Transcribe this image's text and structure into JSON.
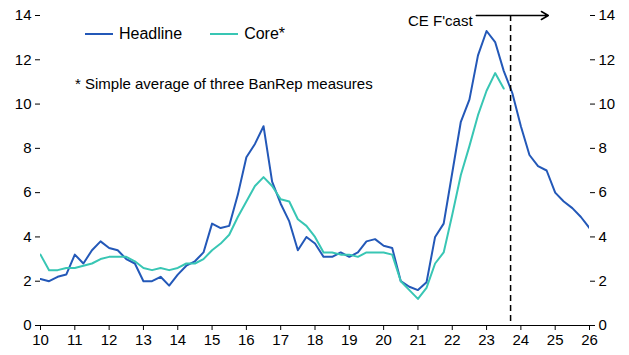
{
  "chart_data": {
    "type": "line",
    "x": [
      2010,
      2010.25,
      2010.5,
      2010.75,
      2011,
      2011.25,
      2011.5,
      2011.75,
      2012,
      2012.25,
      2012.5,
      2012.75,
      2013,
      2013.25,
      2013.5,
      2013.75,
      2014,
      2014.25,
      2014.5,
      2014.75,
      2015,
      2015.25,
      2015.5,
      2015.75,
      2016,
      2016.25,
      2016.5,
      2016.75,
      2017,
      2017.25,
      2017.5,
      2017.75,
      2018,
      2018.25,
      2018.5,
      2018.75,
      2019,
      2019.25,
      2019.5,
      2019.75,
      2020,
      2020.25,
      2020.5,
      2020.75,
      2021,
      2021.25,
      2021.5,
      2021.75,
      2022,
      2022.25,
      2022.5,
      2022.75,
      2023,
      2023.25,
      2023.5,
      2023.75,
      2024,
      2024.25,
      2024.5,
      2024.75,
      2025,
      2025.25,
      2025.5,
      2025.75,
      2026
    ],
    "series": [
      {
        "name": "Headline",
        "color": "#2358b8",
        "values": [
          2.1,
          2.0,
          2.2,
          2.3,
          3.2,
          2.8,
          3.4,
          3.8,
          3.5,
          3.4,
          3.0,
          2.8,
          2.0,
          2.0,
          2.2,
          1.8,
          2.3,
          2.7,
          2.9,
          3.3,
          4.6,
          4.4,
          4.5,
          5.9,
          7.6,
          8.2,
          9.0,
          6.5,
          5.5,
          4.7,
          3.4,
          4.0,
          3.7,
          3.1,
          3.1,
          3.3,
          3.1,
          3.3,
          3.8,
          3.9,
          3.6,
          3.5,
          2.0,
          1.75,
          1.6,
          1.95,
          4.0,
          4.6,
          6.9,
          9.2,
          10.2,
          12.2,
          13.3,
          12.8,
          11.5,
          10.5,
          9.0,
          7.7,
          7.2,
          7.0,
          6.0,
          5.6,
          5.3,
          4.9,
          4.4
        ]
      },
      {
        "name": "Core*",
        "color": "#38c6b4",
        "values": [
          3.2,
          2.5,
          2.5,
          2.6,
          2.6,
          2.7,
          2.8,
          3.0,
          3.1,
          3.1,
          3.1,
          2.9,
          2.6,
          2.5,
          2.6,
          2.5,
          2.6,
          2.8,
          2.8,
          3.0,
          3.4,
          3.7,
          4.1,
          4.9,
          5.6,
          6.3,
          6.7,
          6.3,
          5.7,
          5.6,
          4.8,
          4.5,
          4.0,
          3.3,
          3.3,
          3.2,
          3.2,
          3.1,
          3.3,
          3.3,
          3.3,
          3.2,
          2.0,
          1.6,
          1.2,
          1.7,
          2.8,
          3.3,
          5.0,
          6.8,
          8.1,
          9.5,
          10.6,
          11.4,
          10.7,
          null,
          null,
          null,
          null,
          null,
          null,
          null,
          null,
          null,
          null
        ]
      }
    ],
    "xlim": [
      2010,
      2026
    ],
    "xticks": [
      {
        "value": 2010,
        "label": "10"
      },
      {
        "value": 2011,
        "label": "11"
      },
      {
        "value": 2012,
        "label": "12"
      },
      {
        "value": 2013,
        "label": "13"
      },
      {
        "value": 2014,
        "label": "14"
      },
      {
        "value": 2015,
        "label": "15"
      },
      {
        "value": 2016,
        "label": "16"
      },
      {
        "value": 2017,
        "label": "17"
      },
      {
        "value": 2018,
        "label": "18"
      },
      {
        "value": 2019,
        "label": "19"
      },
      {
        "value": 2020,
        "label": "20"
      },
      {
        "value": 2021,
        "label": "21"
      },
      {
        "value": 2022,
        "label": "22"
      },
      {
        "value": 2023,
        "label": "23"
      },
      {
        "value": 2024,
        "label": "24"
      },
      {
        "value": 2025,
        "label": "25"
      },
      {
        "value": 2026,
        "label": "26"
      }
    ],
    "ylim": [
      0,
      14
    ],
    "yticks": [
      0,
      2,
      4,
      6,
      8,
      10,
      12,
      14
    ],
    "y2lim": [
      0,
      14
    ],
    "y2ticks": [
      0,
      2,
      4,
      6,
      8,
      10,
      12,
      14
    ],
    "legend": "top-left",
    "annotations": [
      {
        "text": "* Simple average of three BanRep measures"
      },
      {
        "text": "CE F'cast",
        "x": 2023.7
      }
    ]
  }
}
